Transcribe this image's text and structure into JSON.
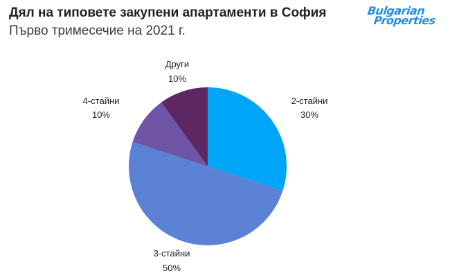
{
  "header": {
    "title": "Дял на типовете закупени апартаменти в София",
    "subtitle": "Първо тримесечие на 2021 г.",
    "logo_line1": "Bulgarian",
    "logo_line2": "Properties"
  },
  "colors": {
    "logo": "#1f8fe0"
  },
  "chart_data": {
    "type": "pie",
    "title": "Дял на типовете закупени апартаменти в София",
    "subtitle": "Първо тримесечие на 2021 г.",
    "legend": "none",
    "slices": [
      {
        "name": "2-стайни",
        "value": 30,
        "value_label": "30%",
        "color": "#00a5f7"
      },
      {
        "name": "3-стайни",
        "value": 50,
        "value_label": "50%",
        "color": "#5b82d4"
      },
      {
        "name": "4-стайни",
        "value": 10,
        "value_label": "10%",
        "color": "#6f53a4"
      },
      {
        "name": "Други",
        "value": 10,
        "value_label": "10%",
        "color": "#5c2763"
      }
    ]
  }
}
